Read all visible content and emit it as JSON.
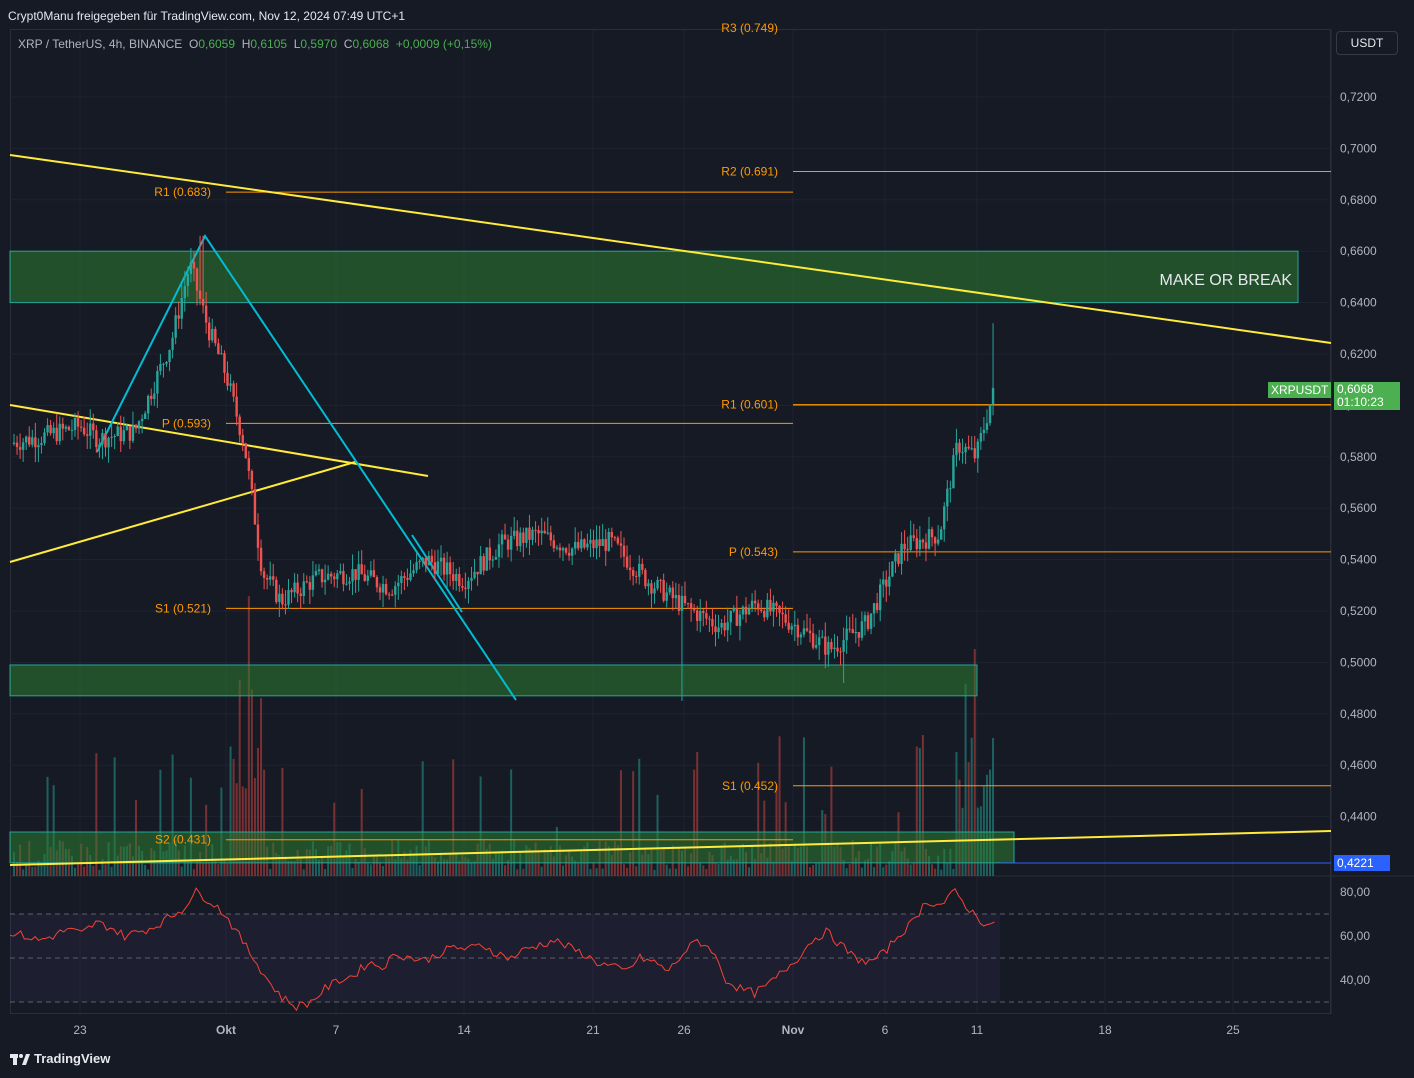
{
  "banner": "Crypt0Manu freigegeben für TradingView.com, Nov 12, 2024 07:49 UTC+1",
  "legend": {
    "symbol": "XRP / TetherUS, 4h, BINANCE",
    "o_label": "O",
    "o_value": "0,6059",
    "h_label": "H",
    "h_value": "0,6105",
    "l_label": "L",
    "l_value": "0,5970",
    "c_label": "C",
    "c_value": "0,6068",
    "change": "+0,0009 (+0,15%)"
  },
  "currency_button": "USDT",
  "price_tag": {
    "symbol": "XRPUSDT",
    "price": "0,6068",
    "countdown": "01:10:23"
  },
  "low_tag": "0,4221",
  "annotation": "MAKE OR BREAK",
  "footer": "TradingView",
  "colors": {
    "up": "#26a69a",
    "down": "#ef5350",
    "zone": "#2e7d32",
    "trend": "#ffeb3b",
    "pivot": "#ff9800",
    "wedge": "#00bcd4",
    "rsi": "#f44336"
  },
  "chart_data": [
    {
      "type": "candlestick",
      "title": "XRP / TetherUS, 4h, BINANCE",
      "ylabel": "USDT",
      "y_ticks": [
        "0,7200",
        "0,7000",
        "0,6800",
        "0,6600",
        "0,6400",
        "0,6200",
        "0,6000",
        "0,5800",
        "0,5600",
        "0,5400",
        "0,5200",
        "0,5000",
        "0,4800",
        "0,4600",
        "0,4400"
      ],
      "x_ticks": [
        "23",
        "Okt",
        "7",
        "14",
        "21",
        "26",
        "Nov",
        "6",
        "11",
        "18",
        "25"
      ],
      "ylim": [
        0.415,
        0.745
      ],
      "pivot_levels": [
        {
          "label": "R3 (0.749)",
          "value": 0.749
        },
        {
          "label": "R2 (0.691)",
          "value": 0.691
        },
        {
          "label": "R1 (0.683)",
          "value": 0.683
        },
        {
          "label": "R1 (0.601)",
          "value": 0.601
        },
        {
          "label": "P (0.593)",
          "value": 0.593
        },
        {
          "label": "P (0.543)",
          "value": 0.543
        },
        {
          "label": "S1 (0.521)",
          "value": 0.521
        },
        {
          "label": "S1 (0.452)",
          "value": 0.452
        },
        {
          "label": "S2 (0.431)",
          "value": 0.431
        }
      ],
      "zones": [
        {
          "name": "MAKE OR BREAK",
          "from": 0.64,
          "to": 0.66
        },
        {
          "from": 0.487,
          "to": 0.499
        },
        {
          "from": 0.422,
          "to": 0.434
        }
      ],
      "close_path": [
        [
          "Sep 19",
          0.585
        ],
        [
          "Sep 21",
          0.588
        ],
        [
          "Sep 23",
          0.592
        ],
        [
          "Sep 24",
          0.587
        ],
        [
          "Sep 26",
          0.59
        ],
        [
          "Sep 28",
          0.625
        ],
        [
          "Sep 29",
          0.655
        ],
        [
          "Sep 30",
          0.63
        ],
        [
          "Okt 1",
          0.612
        ],
        [
          "Okt 2",
          0.585
        ],
        [
          "Okt 3",
          0.535
        ],
        [
          "Okt 4",
          0.524
        ],
        [
          "Okt 6",
          0.533
        ],
        [
          "Okt 8",
          0.535
        ],
        [
          "Okt 10",
          0.529
        ],
        [
          "Okt 12",
          0.54
        ],
        [
          "Okt 14",
          0.532
        ],
        [
          "Okt 16",
          0.546
        ],
        [
          "Okt 18",
          0.55
        ],
        [
          "Okt 20",
          0.544
        ],
        [
          "Okt 22",
          0.547
        ],
        [
          "Okt 24",
          0.532
        ],
        [
          "Okt 26",
          0.522
        ],
        [
          "Okt 28",
          0.514
        ],
        [
          "Okt 30",
          0.523
        ],
        [
          "Nov 1",
          0.515
        ],
        [
          "Nov 3",
          0.505
        ],
        [
          "Nov 5",
          0.515
        ],
        [
          "Nov 7",
          0.545
        ],
        [
          "Nov 9",
          0.55
        ],
        [
          "Nov 10",
          0.585
        ],
        [
          "Nov 11",
          0.58
        ],
        [
          "Nov 12",
          0.6068
        ]
      ],
      "last_price": 0.6068
    },
    {
      "type": "line",
      "title": "RSI",
      "y_ticks": [
        "80,00",
        "60,00",
        "40,00"
      ],
      "ylim": [
        25,
        88
      ],
      "bands": [
        70,
        50,
        30
      ],
      "values": [
        62,
        60,
        58,
        60,
        63,
        61,
        66,
        64,
        60,
        62,
        64,
        68,
        72,
        80,
        76,
        70,
        60,
        50,
        40,
        32,
        28,
        30,
        36,
        40,
        42,
        48,
        46,
        52,
        50,
        49,
        52,
        55,
        54,
        56,
        52,
        50,
        54,
        56,
        58,
        55,
        52,
        48,
        46,
        44,
        50,
        48,
        44,
        52,
        58,
        54,
        40,
        36,
        34,
        38,
        44,
        50,
        58,
        62,
        56,
        50,
        48,
        52,
        60,
        66,
        76,
        74,
        80,
        72,
        66,
        64
      ]
    }
  ]
}
